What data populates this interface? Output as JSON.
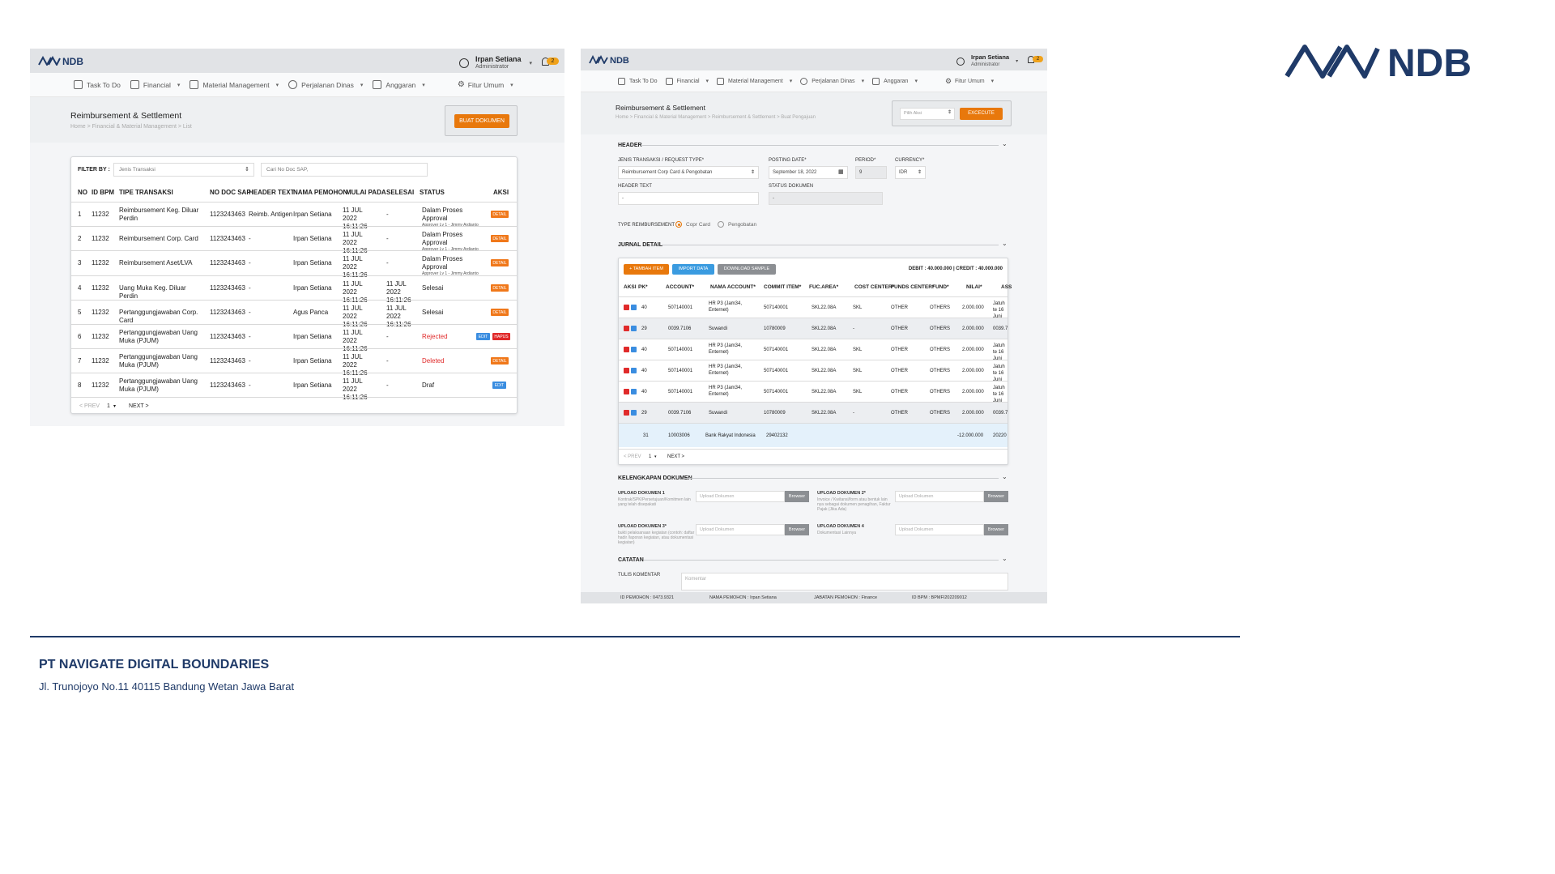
{
  "brand": {
    "logo_text": "NDB",
    "color": "#1f3a68"
  },
  "footer": {
    "company": "PT NAVIGATE DIGITAL BOUNDARIES",
    "address": "Jl. Trunojoyo No.11 40115 Bandung Wetan Jawa Barat"
  },
  "left": {
    "logo": "NDB",
    "user": {
      "name": "Irpan Setiana",
      "role": "Administrator",
      "notif": "2"
    },
    "menu": [
      "Task To Do",
      "Financial",
      "Material Management",
      "Perjalanan Dinas",
      "Anggaran",
      "Fitur Umum"
    ],
    "page_title": "Reimbursement & Settlement",
    "breadcrumb": "Home > Financial & Material Management > List",
    "create_button": "BUAT DOKUMEN",
    "filter": {
      "label": "FILTER BY :",
      "type_placeholder": "Jenis Transaksi",
      "search_placeholder": "Cari No Doc SAP,"
    },
    "columns": [
      "NO",
      "ID BPM",
      "TIPE TRANSAKSI",
      "NO DOC SAP",
      "HEADER TEXT",
      "NAMA PEMOHON",
      "MULAI PADA",
      "SELESAI",
      "STATUS",
      "AKSI"
    ],
    "rows": [
      {
        "no": "1",
        "id": "11232",
        "type": "Reimbursement Keg. Diluar Perdin",
        "doc": "1123243463",
        "header": "Reimb. Antigen",
        "name": "Irpan Setiana",
        "start": "11 JUL 2022 16:11:26",
        "end": "-",
        "status": "Dalam Proses Approval",
        "status_sub": "Approver Lv 1 - Jimmy Ardianto"
      },
      {
        "no": "2",
        "id": "11232",
        "type": "Reimbursement Corp. Card",
        "doc": "1123243463",
        "header": "-",
        "name": "Irpan Setiana",
        "start": "11 JUL 2022 16:11:26",
        "end": "-",
        "status": "Dalam Proses Approval",
        "status_sub": "Approver Lv 1 - Jimmy Ardianto"
      },
      {
        "no": "3",
        "id": "11232",
        "type": "Reimbursement Aset/LVA",
        "doc": "1123243463",
        "header": "-",
        "name": "Irpan Setiana",
        "start": "11 JUL 2022 16:11:26",
        "end": "-",
        "status": "Dalam Proses Approval",
        "status_sub": "Approver Lv 1 - Jimmy Ardianto"
      },
      {
        "no": "4",
        "id": "11232",
        "type": "Uang Muka Keg. Diluar Perdin",
        "doc": "1123243463",
        "header": "-",
        "name": "Irpan Setiana",
        "start": "11 JUL 2022 16:11:26",
        "end": "11 JUL 2022 16:11:26",
        "status": "Selesai",
        "status_sub": ""
      },
      {
        "no": "5",
        "id": "11232",
        "type": "Pertanggungjawaban Corp. Card",
        "doc": "1123243463",
        "header": "-",
        "name": "Agus Panca",
        "start": "11 JUL 2022 16:11:26",
        "end": "11 JUL 2022 16:11:26",
        "status": "Selesai",
        "status_sub": ""
      },
      {
        "no": "6",
        "id": "11232",
        "type": "Pertanggungjawaban Uang Muka (PJUM)",
        "doc": "1123243463",
        "header": "-",
        "name": "Irpan Setiana",
        "start": "11 JUL 2022 16:11:26",
        "end": "-",
        "status": "Rejected",
        "status_sub": ""
      },
      {
        "no": "7",
        "id": "11232",
        "type": "Pertanggungjawaban Uang Muka (PJUM)",
        "doc": "1123243463",
        "header": "-",
        "name": "Irpan Setiana",
        "start": "11 JUL 2022 16:11:26",
        "end": "-",
        "status": "Deleted",
        "status_sub": ""
      },
      {
        "no": "8",
        "id": "11232",
        "type": "Pertanggungjawaban Uang Muka (PJUM)",
        "doc": "1123243463",
        "header": "-",
        "name": "Irpan Setiana",
        "start": "11 JUL 2022 16:11:26",
        "end": "-",
        "status": "Draf",
        "status_sub": ""
      }
    ],
    "actions": {
      "detail": "DETAIL",
      "edit": "EDIT",
      "hapus": "HAPUS"
    },
    "pager": {
      "prev": "< PREV",
      "page": "1",
      "next": "NEXT >"
    }
  },
  "right": {
    "logo": "NDB",
    "user": {
      "name": "Irpan Setiana",
      "role": "Administrator",
      "notif": "2"
    },
    "menu": [
      "Task To Do",
      "Financial",
      "Material Management",
      "Perjalanan Dinas",
      "Anggaran",
      "Fitur Umum"
    ],
    "page_title": "Reimbursement & Settlement",
    "breadcrumb": "Home > Financial & Material Management > Reimbursement & Settlement > Buat Pengajuan",
    "action_placeholder": "Pilih Aksi",
    "execute": "EXCECUTE",
    "sections": {
      "header": "HEADER",
      "jurnal": "JURNAL DETAIL",
      "dokumen": "KELENGKAPAN DOKUMEN",
      "catatan": "CATATAN"
    },
    "fields": {
      "jenis_label": "JENIS TRANSAKSI / REQUEST TYPE*",
      "jenis_value": "Reimbursement Corp Card & Pengobatan",
      "posting_label": "POSTING DATE*",
      "posting_value": "September 18, 2022",
      "period_label": "PERIOD*",
      "period_value": "9",
      "currency_label": "CURRENCY*",
      "currency_value": "IDR",
      "header_text_label": "HEADER TEXT",
      "header_text_value": "-",
      "status_label": "STATUS DOKUMEN",
      "status_value": "-",
      "type_label": "TYPE REIMBURSEMENT",
      "opt1": "Copr Card",
      "opt2": "Pengobatan"
    },
    "jurnal_buttons": {
      "tambah": "+ TAMBAH ITEM",
      "import": "IMPORT DATA",
      "download": "DOWNLOAD SAMPLE"
    },
    "totals": "DEBIT : 40.000.000 | CREDIT : 40.000.000",
    "columns": [
      "AKSI",
      "PK*",
      "ACCOUNT*",
      "NAMA ACCOUNT*",
      "COMMIT ITEM*",
      "FUC.AREA*",
      "COST CENTER*",
      "FUNDS CENTER*",
      "FUND*",
      "NILAI*",
      "ASS"
    ],
    "rows": [
      {
        "pk": "40",
        "account": "507140001",
        "nama": "HR P3 (Jam34, Enternet)",
        "commit": "507140001",
        "area": "SKL22.08A",
        "cost": "SKL",
        "funds": "OTHER",
        "fund": "OTHERS",
        "nilai": "2.000.000",
        "ass": "Jatuh te 16 Juni",
        "grey": false
      },
      {
        "pk": "29",
        "account": "0039.7106",
        "nama": "Suwandi",
        "commit": "10780009",
        "area": "SKL22.08A",
        "cost": "-",
        "funds": "OTHER",
        "fund": "OTHERS",
        "nilai": "2.000.000",
        "ass": "0039.7",
        "grey": true
      },
      {
        "pk": "40",
        "account": "507140001",
        "nama": "HR P3 (Jam34, Enternet)",
        "commit": "507140001",
        "area": "SKL22.08A",
        "cost": "SKL",
        "funds": "OTHER",
        "fund": "OTHERS",
        "nilai": "2.000.000",
        "ass": "Jatuh te 16 Juni",
        "grey": false
      },
      {
        "pk": "40",
        "account": "507140001",
        "nama": "HR P3 (Jam34, Enternet)",
        "commit": "507140001",
        "area": "SKL22.08A",
        "cost": "SKL",
        "funds": "OTHER",
        "fund": "OTHERS",
        "nilai": "2.000.000",
        "ass": "Jatuh te 16 Juni",
        "grey": false
      },
      {
        "pk": "40",
        "account": "507140001",
        "nama": "HR P3 (Jam34, Enternet)",
        "commit": "507140001",
        "area": "SKL22.08A",
        "cost": "SKL",
        "funds": "OTHER",
        "fund": "OTHERS",
        "nilai": "2.000.000",
        "ass": "Jatuh te 16 Juni",
        "grey": false
      },
      {
        "pk": "29",
        "account": "0039.7106",
        "nama": "Suwandi",
        "commit": "10780009",
        "area": "SKL22.08A",
        "cost": "-",
        "funds": "OTHER",
        "fund": "OTHERS",
        "nilai": "2.000.000",
        "ass": "0039.7",
        "grey": true
      }
    ],
    "summary_row": {
      "pk": "31",
      "account": "10003006",
      "nama": "Bank Rakyat Indonesia",
      "commit": "29402132",
      "nilai": "-12.000.000",
      "ass": "20220"
    },
    "pager": {
      "prev": "< PREV",
      "page": "1",
      "next": "NEXT >"
    },
    "uploads": [
      {
        "label": "UPLOAD DOKUMEN 1",
        "desc": "Kontrak/SPK/Persetujuan/Komitmen lain yang telah disepakati"
      },
      {
        "label": "UPLOAD DOKUMEN 2*",
        "desc": "Invoice / Kwitansi/form atau bentuk lain nya sebagai dokumen penagihan, Faktur Pajak (Jika Ada)"
      },
      {
        "label": "UPLOAD DOKUMEN 3*",
        "desc": "bukti pelaksanaan kegiatan (contoh: daftar hadir /laporan kegiatan, atau dokumentasi kegiatan)"
      },
      {
        "label": "UPLOAD DOKUMEN 4",
        "desc": "Dokumentasi Lainnya"
      }
    ],
    "upload_placeholder": "Upload Dokumen",
    "browser": "Browser",
    "comment_label": "TULIS KOMENTAR",
    "comment_placeholder": "Komentar",
    "status_bar": [
      "ID PEMOHON : 0473.9321",
      "NAMA PEMOHON : Irpan Setiana",
      "JABATAN PEMOHON : Finance",
      "ID BPM : BPMFI202209012"
    ]
  }
}
